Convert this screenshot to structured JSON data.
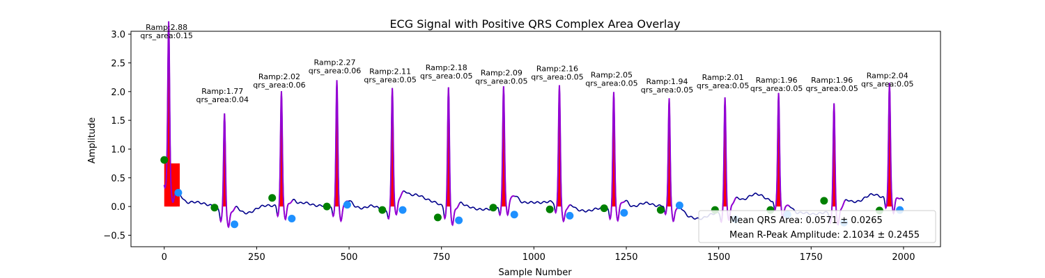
{
  "chart_data": {
    "type": "line",
    "title": "ECG Signal with Positive QRS Complex Area Overlay",
    "xlabel": "Sample Number",
    "ylabel": "Amplitude",
    "xlim": [
      -90,
      2100
    ],
    "ylim": [
      -0.7,
      3.05
    ],
    "xticks": [
      0,
      250,
      500,
      750,
      1000,
      1250,
      1500,
      1750,
      2000
    ],
    "yticks": [
      -0.5,
      0.0,
      0.5,
      1.0,
      1.5,
      2.0,
      2.5,
      3.0
    ],
    "grid": false,
    "colors": {
      "signal": "#00008b",
      "qrs_segment": "#9400d3",
      "qrs_area": "#ff0000",
      "q_points": "#008000",
      "s_points": "#1e90ff"
    },
    "beats": [
      {
        "r": 12,
        "ramp": 2.88,
        "qrs_area": 0.15
      },
      {
        "r": 163,
        "ramp": 1.77,
        "qrs_area": 0.04
      },
      {
        "r": 317,
        "ramp": 2.02,
        "qrs_area": 0.06
      },
      {
        "r": 467,
        "ramp": 2.27,
        "qrs_area": 0.06
      },
      {
        "r": 617,
        "ramp": 2.11,
        "qrs_area": 0.05
      },
      {
        "r": 769,
        "ramp": 2.18,
        "qrs_area": 0.05
      },
      {
        "r": 918,
        "ramp": 2.09,
        "qrs_area": 0.05
      },
      {
        "r": 1069,
        "ramp": 2.16,
        "qrs_area": 0.05
      },
      {
        "r": 1216,
        "ramp": 2.05,
        "qrs_area": 0.05
      },
      {
        "r": 1366,
        "ramp": 1.94,
        "qrs_area": 0.05
      },
      {
        "r": 1517,
        "ramp": 2.01,
        "qrs_area": 0.05
      },
      {
        "r": 1662,
        "ramp": 1.96,
        "qrs_area": 0.05
      },
      {
        "r": 1812,
        "ramp": 1.96,
        "qrs_area": 0.05
      },
      {
        "r": 1962,
        "ramp": 2.04,
        "qrs_area": 0.05
      }
    ],
    "ramp_prefix": "Ramp:",
    "area_prefix": "qrs_area:",
    "q_points": [
      [
        0,
        0.81
      ],
      [
        136,
        -0.02
      ],
      [
        292,
        0.15
      ],
      [
        440,
        0.0
      ],
      [
        590,
        -0.06
      ],
      [
        740,
        -0.19
      ],
      [
        890,
        -0.02
      ],
      [
        1043,
        -0.05
      ],
      [
        1190,
        -0.03
      ],
      [
        1343,
        -0.06
      ],
      [
        1490,
        -0.06
      ],
      [
        1640,
        -0.06
      ],
      [
        1785,
        0.1
      ],
      [
        1935,
        -0.07
      ]
    ],
    "s_points": [
      [
        38,
        0.24
      ],
      [
        190,
        -0.31
      ],
      [
        345,
        -0.21
      ],
      [
        495,
        0.03
      ],
      [
        645,
        -0.06
      ],
      [
        797,
        -0.24
      ],
      [
        947,
        -0.14
      ],
      [
        1097,
        -0.16
      ],
      [
        1244,
        -0.11
      ],
      [
        1394,
        0.02
      ],
      [
        1545,
        -0.22
      ],
      [
        1686,
        -0.14
      ],
      [
        1839,
        -0.28
      ],
      [
        1990,
        -0.06
      ]
    ],
    "legend": {
      "position": "lower right",
      "entries": [
        "Mean QRS Area: 0.0571 ± 0.0265",
        "Mean R-Peak Amplitude: 2.1034 ± 0.2455"
      ]
    }
  }
}
